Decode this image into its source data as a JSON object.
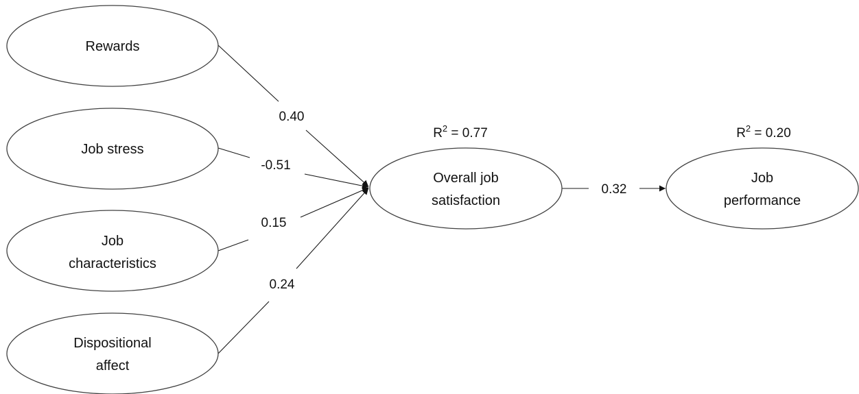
{
  "diagram": {
    "nodes": {
      "rewards": {
        "label": "Rewards"
      },
      "job_stress": {
        "label": "Job stress"
      },
      "job_characteristics": {
        "line1": "Job",
        "line2": "characteristics"
      },
      "dispositional_affect": {
        "line1": "Dispositional",
        "line2": "affect"
      },
      "overall_job_satisfaction": {
        "line1": "Overall job",
        "line2": "satisfaction",
        "r2_prefix": "R",
        "r2_sup": "2",
        "r2_value": " = 0.77"
      },
      "job_performance": {
        "line1": "Job",
        "line2": "performance",
        "r2_prefix": "R",
        "r2_sup": "2",
        "r2_value": " = 0.20"
      }
    },
    "paths": [
      {
        "from": "Rewards",
        "to": "Overall job satisfaction",
        "coefficient": "0.40"
      },
      {
        "from": "Job stress",
        "to": "Overall job satisfaction",
        "coefficient": "-0.51"
      },
      {
        "from": "Job characteristics",
        "to": "Overall job satisfaction",
        "coefficient": "0.15"
      },
      {
        "from": "Dispositional affect",
        "to": "Overall job satisfaction",
        "coefficient": "0.24"
      },
      {
        "from": "Overall job satisfaction",
        "to": "Job performance",
        "coefficient": "0.32"
      }
    ]
  }
}
